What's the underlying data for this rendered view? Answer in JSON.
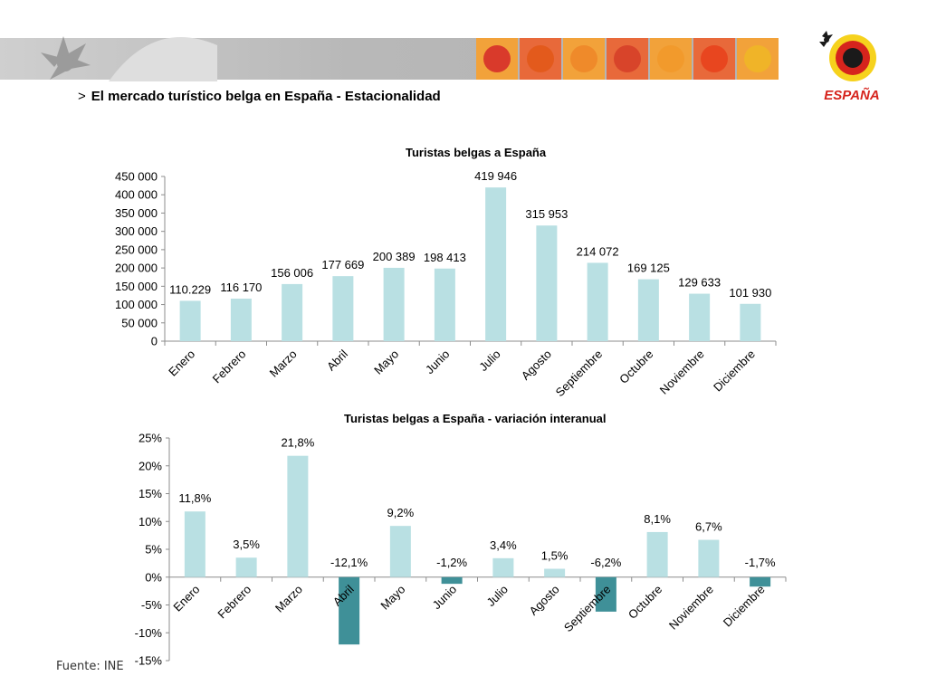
{
  "header": {
    "title_arrow": ">",
    "title": "El mercado turístico belga en España - Estacionalidad",
    "logo_text": "ESPAÑA",
    "banner_tiles": [
      "#d93a2b",
      "#e35a1c",
      "#ef8a2a",
      "#d8442a",
      "#f29a2c",
      "#e8461f",
      "#f0b428"
    ]
  },
  "footer": {
    "source": "Fuente: INE"
  },
  "colors": {
    "bar": "#b9e0e3",
    "bar_negative": "#3f9098",
    "axis": "#8c8c8c"
  },
  "chart_data": [
    {
      "type": "bar",
      "title": "Turistas belgas a España",
      "categories": [
        "Enero",
        "Febrero",
        "Marzo",
        "Abril",
        "Mayo",
        "Junio",
        "Julio",
        "Agosto",
        "Septiembre",
        "Octubre",
        "Noviembre",
        "Diciembre"
      ],
      "values": [
        110229,
        116170,
        156006,
        177669,
        200389,
        198413,
        419946,
        315953,
        214072,
        169125,
        129633,
        101930
      ],
      "data_labels": [
        "110.229",
        "116 170",
        "156 006",
        "177 669",
        "200 389",
        "198 413",
        "419 946",
        "315 953",
        "214 072",
        "169 125",
        "129 633",
        "101 930"
      ],
      "yticks": [
        0,
        50000,
        100000,
        150000,
        200000,
        250000,
        300000,
        350000,
        400000,
        450000
      ],
      "ytick_labels": [
        "0",
        "50 000",
        "100 000",
        "150 000",
        "200 000",
        "250 000",
        "300 000",
        "350 000",
        "400 000",
        "450 000"
      ],
      "ylim": [
        0,
        450000
      ],
      "grid": false,
      "legend": "none"
    },
    {
      "type": "bar",
      "title": "Turistas belgas a España - variación interanual",
      "categories": [
        "Enero",
        "Febrero",
        "Marzo",
        "Abril",
        "Mayo",
        "Junio",
        "Julio",
        "Agosto",
        "Septiembre",
        "Octubre",
        "Noviembre",
        "Diciembre"
      ],
      "values": [
        11.8,
        3.5,
        21.8,
        -12.1,
        9.2,
        -1.2,
        3.4,
        1.5,
        -6.2,
        8.1,
        6.7,
        -1.7
      ],
      "data_labels": [
        "11,8%",
        "3,5%",
        "21,8%",
        "-12,1%",
        "9,2%",
        "-1,2%",
        "3,4%",
        "1,5%",
        "-6,2%",
        "8,1%",
        "6,7%",
        "-1,7%"
      ],
      "yticks": [
        -15,
        -10,
        -5,
        0,
        5,
        10,
        15,
        20,
        25
      ],
      "ytick_labels": [
        "-15%",
        "-10%",
        "-5%",
        "0%",
        "5%",
        "10%",
        "15%",
        "20%",
        "25%"
      ],
      "ylim": [
        -15,
        25
      ],
      "grid": false,
      "legend": "none"
    }
  ]
}
